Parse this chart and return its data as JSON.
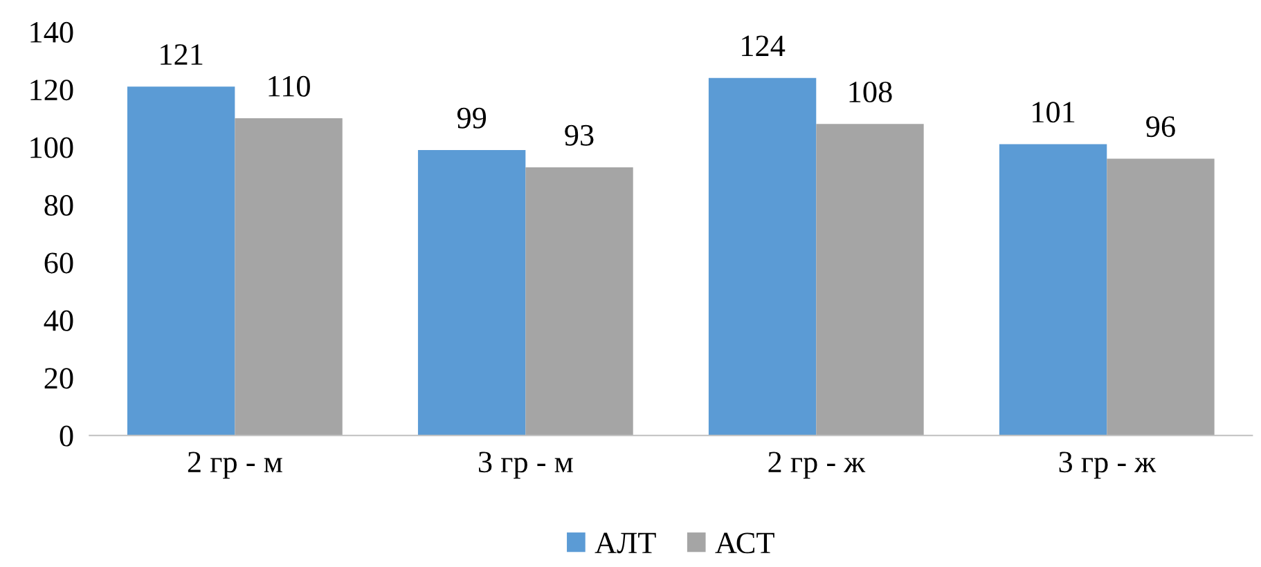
{
  "chart_data": {
    "type": "bar",
    "categories": [
      "2 гр - м",
      "3 гр - м",
      "2 гр - ж",
      "3 гр - ж"
    ],
    "series": [
      {
        "name": "АЛТ",
        "color": "#5b9bd5",
        "values": [
          121,
          99,
          124,
          101
        ]
      },
      {
        "name": "АСТ",
        "color": "#a5a5a5",
        "values": [
          110,
          93,
          108,
          96
        ]
      }
    ],
    "ylim": [
      0,
      140
    ],
    "yticks": [
      0,
      20,
      40,
      60,
      80,
      100,
      120,
      140
    ],
    "grid": false,
    "legend": "bottom",
    "data_labels": true
  }
}
